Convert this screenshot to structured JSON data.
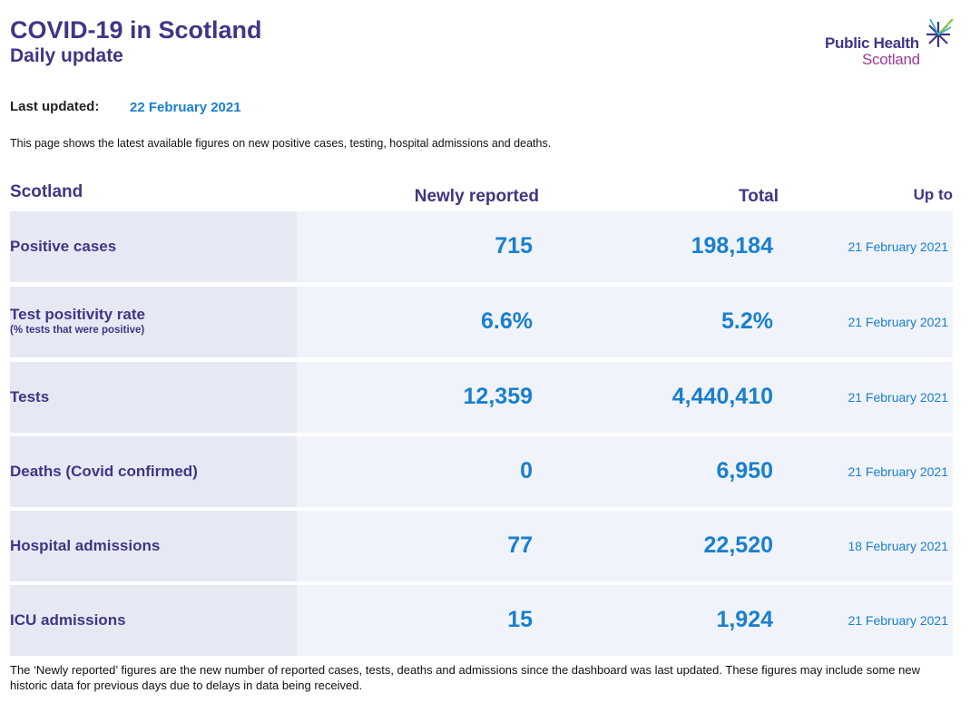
{
  "header": {
    "title": "COVID-19 in Scotland",
    "subtitle": "Daily update",
    "logo_line1": "Public Health",
    "logo_line2": "Scotland"
  },
  "updated": {
    "label": "Last updated:",
    "date": "22 February 2021"
  },
  "intro": "This page shows the latest available figures on new positive cases, testing, hospital admissions and deaths.",
  "table": {
    "columns": {
      "region": "Scotland",
      "newly_reported": "Newly reported",
      "total": "Total",
      "up_to": "Up to"
    },
    "rows": [
      {
        "label": "Positive cases",
        "sublabel": "",
        "new": "715",
        "total": "198,184",
        "up_to": "21 February 2021"
      },
      {
        "label": "Test positivity rate",
        "sublabel": "(% tests that were positive)",
        "new": "6.6%",
        "total": "5.2%",
        "up_to": "21 February 2021"
      },
      {
        "label": "Tests",
        "sublabel": "",
        "new": "12,359",
        "total": "4,440,410",
        "up_to": "21 February 2021"
      },
      {
        "label": "Deaths (Covid confirmed)",
        "sublabel": "",
        "new": "0",
        "total": "6,950",
        "up_to": "21 February 2021"
      },
      {
        "label": "Hospital admissions",
        "sublabel": "",
        "new": "77",
        "total": "22,520",
        "up_to": "18 February 2021"
      },
      {
        "label": "ICU admissions",
        "sublabel": "",
        "new": "15",
        "total": "1,924",
        "up_to": "21 February 2021"
      }
    ]
  },
  "footnote": "The ‘Newly reported’ figures are the new number of reported cases, tests, deaths and admissions since the dashboard was last updated. These figures may include some new historic data for previous days due to delays in data being received.",
  "colors": {
    "heading": "#3f3685",
    "value": "#1a7fcf",
    "logo_accent": "#9b3c9b",
    "row_bg": "#f0f3fa",
    "label_bg": "#e6e9f4"
  }
}
